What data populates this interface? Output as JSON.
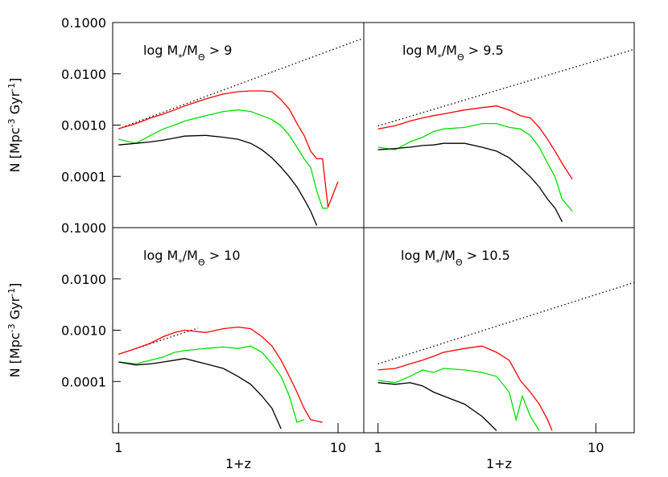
{
  "chart_data": [
    {
      "type": "line",
      "xscale": "log",
      "yscale": "log",
      "annotation": [
        "log M",
        "*",
        "/M",
        "Θ",
        " > 9"
      ],
      "ylabel": [
        "N [Mpc",
        "-3",
        " Gyr",
        "-1",
        "]"
      ],
      "xlim": [
        0.94,
        13.1
      ],
      "ylim": [
        1e-05,
        0.1
      ],
      "yticks": [
        {
          "value": 0.1,
          "label": "0.1000"
        },
        {
          "value": 0.01,
          "label": "0.0100"
        },
        {
          "value": 0.001,
          "label": "0.0010"
        },
        {
          "value": 0.0001,
          "label": "0.0001"
        }
      ],
      "series": [
        {
          "color": "#000000",
          "linestyle": "dotted",
          "x": [
            1,
            13
          ],
          "values": [
            0.00085,
            0.049
          ]
        },
        {
          "color": "#ff0000",
          "x": [
            1,
            1.2,
            1.4,
            1.6,
            1.8,
            2,
            2.5,
            3,
            3.5,
            4,
            4.5,
            5,
            5.5,
            6,
            6.5,
            7,
            7.5,
            8,
            8.5,
            9,
            10
          ],
          "values": [
            0.00085,
            0.00107,
            0.00138,
            0.00165,
            0.00197,
            0.00236,
            0.00325,
            0.00403,
            0.00448,
            0.00464,
            0.00464,
            0.00448,
            0.00313,
            0.00204,
            0.00107,
            0.00063,
            0.00031,
            0.00022,
            0.00022,
            2.5e-05,
            7.9e-05
          ]
        },
        {
          "color": "#00e000",
          "x": [
            1,
            1.2,
            1.4,
            1.6,
            1.8,
            2,
            2.5,
            3,
            3.5,
            4,
            4.5,
            5,
            5.5,
            6,
            6.5,
            7,
            7.5,
            8,
            8.5,
            9
          ],
          "values": [
            0.00053,
            0.00044,
            0.00063,
            0.00084,
            0.001,
            0.0012,
            0.00153,
            0.00184,
            0.00197,
            0.00184,
            0.00153,
            0.00128,
            0.00097,
            0.00063,
            0.00037,
            0.00022,
            0.00015,
            5.2e-05,
            2.4e-05,
            2.4e-05
          ]
        },
        {
          "color": "#000000",
          "x": [
            1,
            1.2,
            1.4,
            1.6,
            1.8,
            2,
            2.5,
            3,
            3.5,
            4,
            4.5,
            5,
            5.5,
            6,
            6.5,
            7,
            7.5,
            8
          ],
          "values": [
            0.00041,
            0.00044,
            0.00047,
            0.00051,
            0.00056,
            0.00061,
            0.00063,
            0.00058,
            0.00053,
            0.00044,
            0.00033,
            0.00023,
            0.00015,
            9.8e-05,
            6.2e-05,
            3.6e-05,
            2.1e-05,
            1.1e-05
          ]
        }
      ]
    },
    {
      "type": "line",
      "xscale": "log",
      "yscale": "log",
      "annotation": [
        "log M",
        "*",
        "/M",
        "Θ",
        " > 9.5"
      ],
      "xlim": [
        0.86,
        15
      ],
      "ylim": [
        1e-05,
        0.1
      ],
      "series": [
        {
          "color": "#000000",
          "linestyle": "dotted",
          "x": [
            1,
            15
          ],
          "values": [
            0.00096,
            0.03
          ]
        },
        {
          "color": "#ff0000",
          "x": [
            1,
            1.2,
            1.4,
            1.6,
            1.8,
            2,
            2.5,
            3,
            3.5,
            4,
            4.5,
            5,
            5.5,
            6,
            6.5,
            7,
            7.8
          ],
          "values": [
            0.00084,
            0.00097,
            0.0012,
            0.00138,
            0.00153,
            0.00165,
            0.00197,
            0.00219,
            0.00236,
            0.00197,
            0.00153,
            0.00138,
            0.0009,
            0.00053,
            0.00031,
            0.00018,
            8.8e-05
          ]
        },
        {
          "color": "#00e000",
          "x": [
            1,
            1.2,
            1.4,
            1.6,
            1.8,
            2,
            2.5,
            3,
            3.5,
            4,
            4.5,
            5,
            5.5,
            6,
            6.5,
            7,
            7.8
          ],
          "values": [
            0.00037,
            0.00033,
            0.00047,
            0.00058,
            0.00075,
            0.00084,
            0.0009,
            0.00107,
            0.00107,
            0.0009,
            0.00084,
            0.00063,
            0.00037,
            0.00018,
            9.8e-05,
            3.6e-05,
            2.1e-05
          ]
        },
        {
          "color": "#000000",
          "x": [
            1,
            1.2,
            1.4,
            1.6,
            1.8,
            2,
            2.5,
            3,
            3.5,
            4,
            4.5,
            5,
            5.5,
            6,
            6.5,
            7
          ],
          "values": [
            0.00033,
            0.00035,
            0.00037,
            0.0004,
            0.00041,
            0.00044,
            0.00044,
            0.00037,
            0.00031,
            0.00023,
            0.00015,
            9.8e-05,
            6.2e-05,
            3.6e-05,
            2.4e-05,
            1.3e-05
          ]
        }
      ]
    },
    {
      "type": "line",
      "xscale": "log",
      "yscale": "log",
      "annotation": [
        "log M",
        "*",
        "/M",
        "Θ",
        " > 10"
      ],
      "ylabel": [
        "N [Mpc",
        "-3",
        " Gyr",
        "-1",
        "]"
      ],
      "xlabel": "1+z",
      "xlim": [
        0.94,
        13.1
      ],
      "ylim": [
        1e-05,
        0.1
      ],
      "xticks": [
        1,
        10
      ],
      "yticks": [
        {
          "value": 0.1,
          "label": "0.1000"
        },
        {
          "value": 0.01,
          "label": "0.0100"
        },
        {
          "value": 0.001,
          "label": "0.0010"
        },
        {
          "value": 0.0001,
          "label": "0.0001"
        }
      ],
      "series": [
        {
          "color": "#000000",
          "linestyle": "dotted",
          "x": [
            1,
            2.3
          ],
          "values": [
            0.00034,
            0.0011
          ]
        },
        {
          "color": "#ff0000",
          "x": [
            1,
            1.2,
            1.4,
            1.6,
            1.8,
            2,
            2.5,
            3,
            3.5,
            4,
            4.5,
            5,
            5.5,
            6,
            6.5,
            7,
            7.5,
            8.5
          ],
          "values": [
            0.00034,
            0.00044,
            0.00056,
            0.00075,
            0.0009,
            0.001,
            0.0009,
            0.00107,
            0.00115,
            0.00107,
            0.00075,
            0.00049,
            0.00026,
            0.000126,
            6.2e-05,
            3e-05,
            1.8e-05,
            1.6e-05
          ]
        },
        {
          "color": "#00e000",
          "x": [
            1,
            1.2,
            1.4,
            1.6,
            1.8,
            2,
            2.5,
            3,
            3.5,
            4,
            4.5,
            5,
            5.5,
            6,
            6.5,
            7
          ],
          "values": [
            0.00024,
            0.00022,
            0.00026,
            0.0003,
            0.00037,
            0.0004,
            0.00044,
            0.00047,
            0.00044,
            0.00049,
            0.00037,
            0.00022,
            0.000126,
            5.2e-05,
            1.6e-05,
            1.8e-05
          ]
        },
        {
          "color": "#000000",
          "x": [
            1,
            1.2,
            1.4,
            1.6,
            1.8,
            2,
            2.5,
            3,
            3.5,
            4,
            4.5,
            5,
            5.5
          ],
          "values": [
            0.00024,
            0.00021,
            0.00022,
            0.00024,
            0.00026,
            0.00028,
            0.00022,
            0.00018,
            0.000126,
            8.8e-05,
            5.2e-05,
            3e-05,
            1.2e-05
          ]
        }
      ]
    },
    {
      "type": "line",
      "xscale": "log",
      "yscale": "log",
      "annotation": [
        "log M",
        "*",
        "/M",
        "Θ",
        " > 10.5"
      ],
      "xlabel": "1+z",
      "xlim": [
        0.86,
        15
      ],
      "ylim": [
        1e-05,
        0.1
      ],
      "xticks": [
        1,
        10
      ],
      "series": [
        {
          "color": "#000000",
          "linestyle": "dotted",
          "x": [
            1,
            15
          ],
          "values": [
            0.00022,
            0.0085
          ]
        },
        {
          "color": "#ff0000",
          "x": [
            1,
            1.2,
            1.4,
            1.6,
            1.8,
            2,
            2.5,
            3,
            3.5,
            4,
            4.5,
            5,
            5.5,
            6,
            6.3
          ],
          "values": [
            0.000168,
            0.00018,
            0.00022,
            0.00026,
            0.00031,
            0.00037,
            0.00044,
            0.00049,
            0.00037,
            0.00026,
            0.000105,
            6.2e-05,
            3.6e-05,
            1.8e-05,
            1.1e-05
          ]
        },
        {
          "color": "#00e000",
          "x": [
            1,
            1.2,
            1.4,
            1.6,
            1.8,
            2,
            2.5,
            3,
            3.5,
            4,
            4.3,
            4.6,
            5,
            5.5
          ],
          "values": [
            0.000105,
            9.5e-05,
            0.000126,
            0.000168,
            0.00015,
            0.00018,
            0.000168,
            0.00015,
            0.000126,
            6.2e-05,
            1.8e-05,
            5.2e-05,
            2.1e-05,
            1.1e-05
          ]
        },
        {
          "color": "#000000",
          "x": [
            1,
            1.2,
            1.4,
            1.6,
            1.8,
            2,
            2.5,
            3,
            3.5
          ],
          "values": [
            9.5e-05,
            8.8e-05,
            9.5e-05,
            8.2e-05,
            6.2e-05,
            5.2e-05,
            3.6e-05,
            2.1e-05,
            1.1e-05
          ]
        }
      ]
    }
  ]
}
